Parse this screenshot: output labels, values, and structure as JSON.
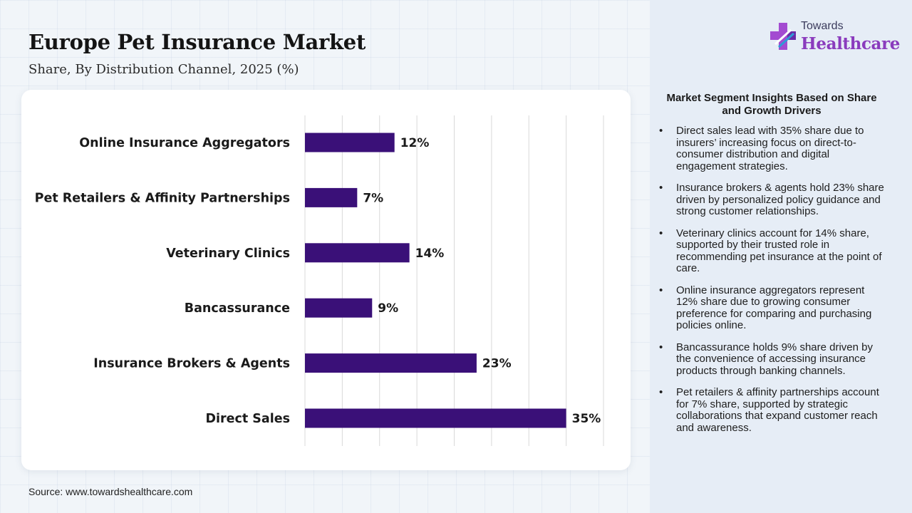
{
  "header": {
    "title": "Europe Pet Insurance Market",
    "subtitle": "Share, By Distribution Channel, 2025 (%)"
  },
  "logo": {
    "top": "Towards",
    "main": "Healthcare",
    "icon": "plus-cross-icon"
  },
  "colors": {
    "bar": "#3a1078",
    "accent": "#8a3bbd",
    "grid": "#d9d9d9"
  },
  "chart_data": {
    "type": "bar",
    "orientation": "horizontal",
    "categories": [
      "Online Insurance Aggregators",
      "Pet Retailers & Affinity Partnerships",
      "Veterinary Clinics",
      "Bancassurance",
      "Insurance Brokers & Agents",
      "Direct Sales"
    ],
    "values": [
      12,
      7,
      14,
      9,
      23,
      35
    ],
    "labels": [
      "12%",
      "7%",
      "14%",
      "9%",
      "23%",
      "35%"
    ],
    "xlim": [
      0,
      40
    ],
    "grid": true
  },
  "insights": {
    "title": "Market Segment Insights Based on Share and Growth Drivers",
    "items": [
      "Direct sales lead with 35% share due to insurers’ increasing focus on direct-to-consumer distribution and digital engagement strategies.",
      "Insurance brokers & agents hold 23% share driven by personalized policy guidance and strong customer relationships.",
      "Veterinary clinics account for 14% share, supported by their trusted role in recommending pet insurance at the point of care.",
      "Online insurance aggregators represent 12% share due to growing consumer preference for comparing and purchasing policies online.",
      "Bancassurance holds 9% share driven by the convenience of accessing insurance products through banking channels.",
      "Pet retailers & affinity partnerships account for 7% share, supported by strategic collaborations that expand customer reach and awareness."
    ]
  },
  "footer": {
    "source": "Source: www.towardshealthcare.com"
  }
}
